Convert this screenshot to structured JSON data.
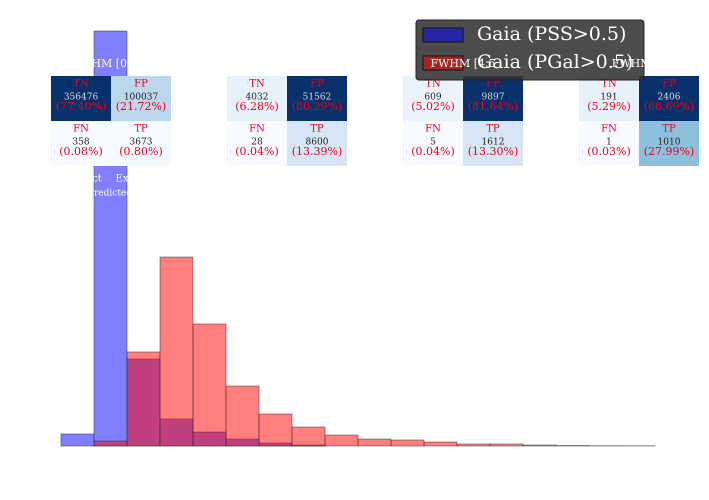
{
  "chart_data": {
    "type": "histogram",
    "bins": [
      0,
      1,
      2,
      3,
      4,
      5,
      6,
      7,
      8,
      9,
      10,
      11,
      12,
      13,
      14,
      15,
      16,
      17,
      18
    ],
    "xlim": [
      0,
      18
    ],
    "ylim": [
      0,
      420
    ],
    "series": [
      {
        "name": "Gaia (PSS>0.5)",
        "color": "#0000ff",
        "values": [
          12,
          415,
          87,
          27,
          14,
          7,
          3,
          1,
          0,
          0,
          0,
          0,
          0,
          0,
          0,
          0,
          0,
          0
        ]
      },
      {
        "name": "Gaia (PGal>0.5)",
        "color": "#ff0000",
        "values": [
          0,
          5,
          94,
          189,
          122,
          60,
          32,
          19,
          11,
          7,
          6,
          4,
          2,
          2,
          1,
          0.5,
          0.3,
          0.2
        ]
      }
    ],
    "legend": "upper right",
    "insets": [
      {
        "title": "HM [0,",
        "cells": [
          {
            "label": "TN",
            "count": 356476,
            "percent": 77.4,
            "percent_label": "(77.40%)"
          },
          {
            "label": "FP",
            "count": 100037,
            "percent": 21.72,
            "percent_label": "(21.72%)"
          },
          {
            "label": "FN",
            "count": 358,
            "percent": 0.08,
            "percent_label": "(0.08%)"
          },
          {
            "label": "TP",
            "count": 3673,
            "percent": 0.8,
            "percent_label": "(0.80%)"
          }
        ]
      },
      {
        "title": "",
        "cells": [
          {
            "label": "TN",
            "count": 4032,
            "percent": 6.28,
            "percent_label": "(6.28%)"
          },
          {
            "label": "FP",
            "count": 51562,
            "percent": 80.29,
            "percent_label": "(80.29%)"
          },
          {
            "label": "FN",
            "count": 28,
            "percent": 0.04,
            "percent_label": "(0.04%)"
          },
          {
            "label": "TP",
            "count": 8600,
            "percent": 13.39,
            "percent_label": "(13.39%)"
          }
        ]
      },
      {
        "title": "FWHM [4.5",
        "cells": [
          {
            "label": "TN",
            "count": 609,
            "percent": 5.02,
            "percent_label": "(5.02%)"
          },
          {
            "label": "FP",
            "count": 9897,
            "percent": 81.64,
            "percent_label": "(81.64%)"
          },
          {
            "label": "FN",
            "count": 5,
            "percent": 0.04,
            "percent_label": "(0.04%)"
          },
          {
            "label": "TP",
            "count": 1612,
            "percent": 13.3,
            "percent_label": "(13.30%)"
          }
        ]
      },
      {
        "title": "FWHM [6",
        "cells": [
          {
            "label": "TN",
            "count": 191,
            "percent": 5.29,
            "percent_label": "(5.29%)"
          },
          {
            "label": "FP",
            "count": 2406,
            "percent": 66.69,
            "percent_label": "(66.69%)"
          },
          {
            "label": "FN",
            "count": 1,
            "percent": 0.03,
            "percent_label": "(0.03%)"
          },
          {
            "label": "TP",
            "count": 1010,
            "percent": 27.99,
            "percent_label": "(27.99%)"
          }
        ]
      }
    ],
    "annotations": [
      "ct",
      "Ex",
      "Predicted"
    ]
  }
}
